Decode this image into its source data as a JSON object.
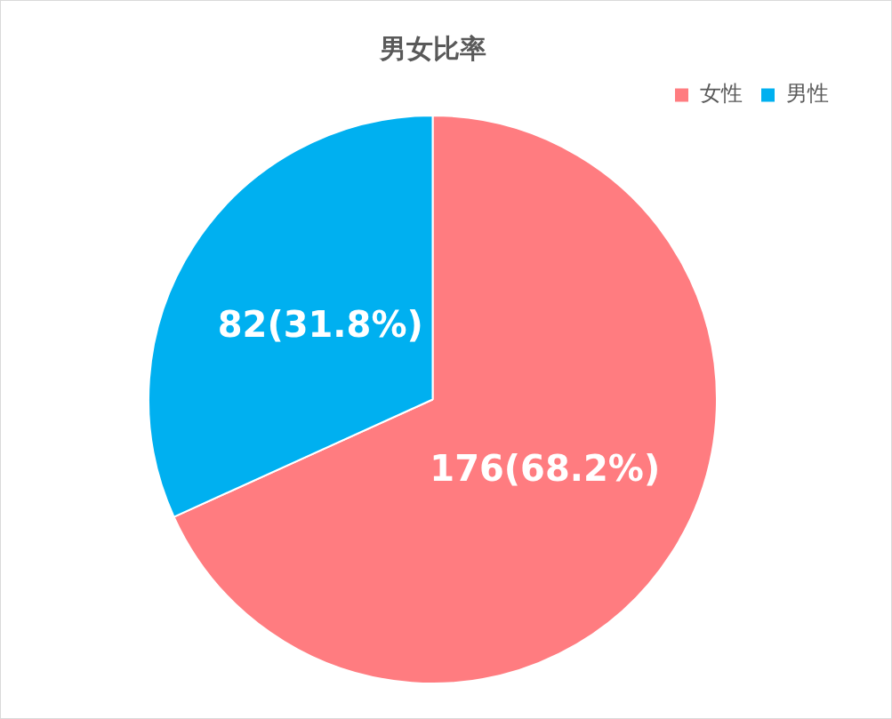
{
  "chart_data": {
    "type": "pie",
    "title": "男女比率",
    "categories": [
      "女性",
      "男性"
    ],
    "values": [
      176,
      82
    ],
    "colors": [
      "#ff7c80",
      "#00b0f0"
    ],
    "value_labels": [
      "176(68.2%)",
      "82(31.8%)"
    ],
    "legend": "top right"
  }
}
